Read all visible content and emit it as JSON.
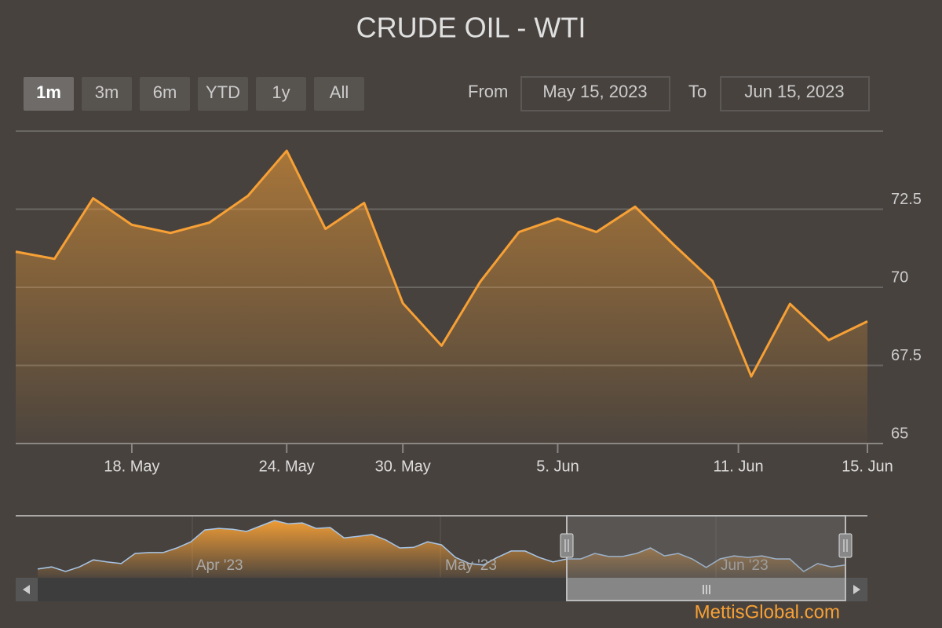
{
  "chart_data": {
    "type": "area",
    "title": "CRUDE OIL - WTI",
    "range_buttons": [
      "1m",
      "3m",
      "6m",
      "YTD",
      "1y",
      "All"
    ],
    "selected_button": "1m",
    "from_label": "From",
    "from_value": "May 15, 2023",
    "to_label": "To",
    "to_value": "Jun 15, 2023",
    "x": [
      "2023-05-15",
      "2023-05-16",
      "2023-05-17",
      "2023-05-18",
      "2023-05-19",
      "2023-05-22",
      "2023-05-23",
      "2023-05-24",
      "2023-05-25",
      "2023-05-26",
      "2023-05-30",
      "2023-05-31",
      "2023-06-01",
      "2023-06-02",
      "2023-06-05",
      "2023-06-06",
      "2023-06-07",
      "2023-06-08",
      "2023-06-09",
      "2023-06-12",
      "2023-06-13",
      "2023-06-14",
      "2023-06-15"
    ],
    "series": [
      {
        "name": "WTI",
        "color": "#f7a035",
        "values": [
          71.14,
          70.91,
          72.85,
          72.0,
          71.74,
          72.07,
          72.93,
          74.37,
          71.87,
          72.7,
          69.49,
          68.13,
          70.18,
          71.77,
          72.2,
          71.77,
          72.58,
          71.36,
          70.2,
          67.15,
          69.47,
          68.31,
          68.91
        ]
      }
    ],
    "ylim": [
      65,
      75
    ],
    "yticks": [
      65,
      67.5,
      70,
      72.5
    ],
    "grid": true,
    "xticks": [
      {
        "value": "2023-05-18",
        "label": "18. May"
      },
      {
        "value": "2023-05-24",
        "label": "24. May"
      },
      {
        "value": "2023-05-30",
        "label": "30. May"
      },
      {
        "value": "2023-06-05",
        "label": "5. Jun"
      },
      {
        "value": "2023-06-11",
        "label": "11. Jun"
      },
      {
        "value": "2023-06-15",
        "label": "15. Jun"
      }
    ]
  },
  "navigator": {
    "color": "#a8c6e8",
    "labels": [
      "Apr '23",
      "May '23",
      "Jun '23"
    ],
    "values": [
      66.6,
      67.3,
      65.8,
      67.3,
      69.6,
      68.9,
      68.4,
      71.7,
      72.0,
      72.0,
      73.5,
      75.5,
      79.4,
      79.9,
      79.6,
      78.9,
      80.7,
      82.5,
      81.4,
      81.7,
      79.9,
      80.2,
      76.8,
      77.3,
      77.9,
      76.1,
      73.5,
      73.7,
      75.5,
      74.5,
      70.4,
      68.4,
      67.9,
      70.4,
      72.5,
      72.5,
      70.4,
      68.9,
      69.9,
      69.9,
      71.7,
      70.7,
      70.7,
      71.7,
      73.5,
      70.9,
      71.7,
      69.9,
      67.1,
      69.9,
      70.9,
      70.4,
      70.9,
      69.9,
      69.9,
      65.8,
      68.4,
      67.3,
      67.9
    ]
  },
  "watermark": "MettisGlobal.com"
}
